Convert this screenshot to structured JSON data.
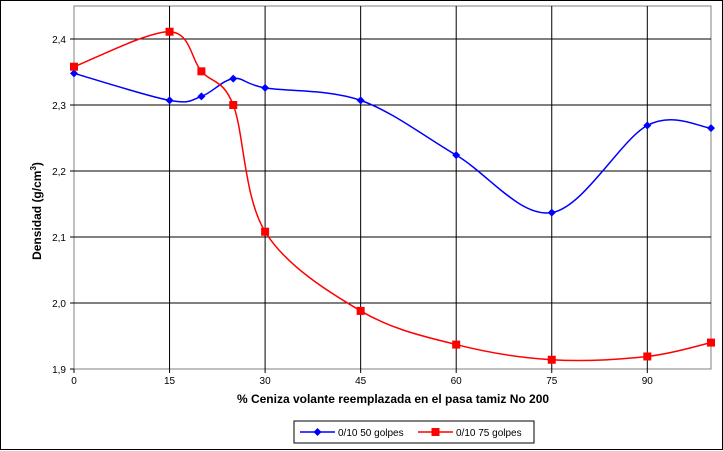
{
  "chart_data": {
    "type": "line",
    "xlabel": "% Ceniza volante reemplazada en el pasa tamiz No 200",
    "ylabel_main": "Densidad (g/cm",
    "ylabel_sup": "3",
    "ylabel_close": ")",
    "xlim": [
      0,
      100
    ],
    "ylim": [
      1.9,
      2.45
    ],
    "x_ticks": [
      0,
      15,
      30,
      45,
      60,
      75,
      90
    ],
    "x_tick_labels": [
      "0",
      "15",
      "30",
      "45",
      "60",
      "75",
      "90"
    ],
    "y_ticks": [
      1.9,
      2.0,
      2.1,
      2.2,
      2.3,
      2.4
    ],
    "y_tick_labels": [
      "1,9",
      "2,0",
      "2,1",
      "2,2",
      "2,3",
      "2,4"
    ],
    "grid": true,
    "legend_position": "bottom",
    "series": [
      {
        "name": "0/10 50 golpes",
        "color": "#0000FF",
        "marker": "diamond",
        "x": [
          0,
          15,
          20,
          25,
          30,
          45,
          60,
          75,
          90,
          100
        ],
        "y": [
          2.348,
          2.307,
          2.313,
          2.34,
          2.326,
          2.307,
          2.224,
          2.137,
          2.269,
          2.265
        ]
      },
      {
        "name": "0/10 75 golpes",
        "color": "#FF0000",
        "marker": "square",
        "x": [
          0,
          15,
          20,
          25,
          30,
          45,
          60,
          75,
          90,
          100
        ],
        "y": [
          2.358,
          2.411,
          2.351,
          2.3,
          2.108,
          1.988,
          1.937,
          1.914,
          1.919,
          1.94
        ]
      }
    ]
  }
}
